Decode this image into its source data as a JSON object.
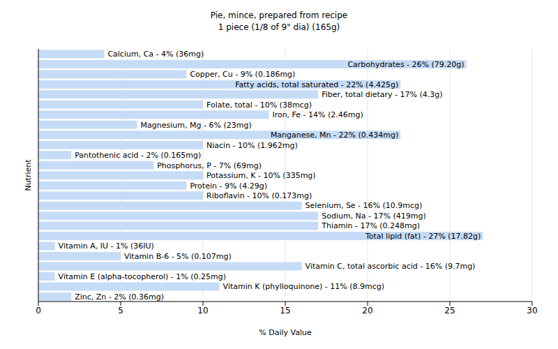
{
  "chart_data": {
    "type": "bar",
    "orientation": "horizontal",
    "title": "Pie, mince, prepared from recipe",
    "subtitle": "1 piece (1/8 of 9\" dia) (165g)",
    "xlabel": "% Daily Value",
    "ylabel": "Nutrient",
    "categories": [
      "Calcium, Ca - 4% (36mg)",
      "Carbohydrates - 26% (79.20g)",
      "Copper, Cu - 9% (0.186mg)",
      "Fatty acids, total saturated - 22% (4.425g)",
      "Fiber, total dietary - 17% (4.3g)",
      "Folate, total - 10% (38mcg)",
      "Iron, Fe - 14% (2.46mg)",
      "Magnesium, Mg - 6% (23mg)",
      "Manganese, Mn - 22% (0.434mg)",
      "Niacin - 10% (1.962mg)",
      "Pantothenic acid - 2% (0.165mg)",
      "Phosphorus, P - 7% (69mg)",
      "Potassium, K - 10% (335mg)",
      "Protein - 9% (4.29g)",
      "Riboflavin - 10% (0.173mg)",
      "Selenium, Se - 16% (10.9mcg)",
      "Sodium, Na - 17% (419mg)",
      "Thiamin - 17% (0.248mg)",
      "Total lipid (fat) - 27% (17.82g)",
      "Vitamin A, IU - 1% (36IU)",
      "Vitamin B-6 - 5% (0.107mg)",
      "Vitamin C, total ascorbic acid - 16% (9.7mg)",
      "Vitamin E (alpha-tocopherol) - 1% (0.25mg)",
      "Vitamin K (phylloquinone) - 11% (8.9mcg)",
      "Zinc, Zn - 2% (0.36mg)"
    ],
    "values": [
      4,
      26,
      9,
      22,
      17,
      10,
      14,
      6,
      22,
      10,
      2,
      7,
      10,
      9,
      10,
      16,
      17,
      17,
      27,
      1,
      5,
      16,
      1,
      11,
      2
    ],
    "color": "#c6dcf6",
    "xlim": [
      0,
      30
    ],
    "xticks": [
      0,
      5,
      10,
      15,
      20,
      25,
      30
    ],
    "grid": true,
    "tick_labels": "x"
  }
}
